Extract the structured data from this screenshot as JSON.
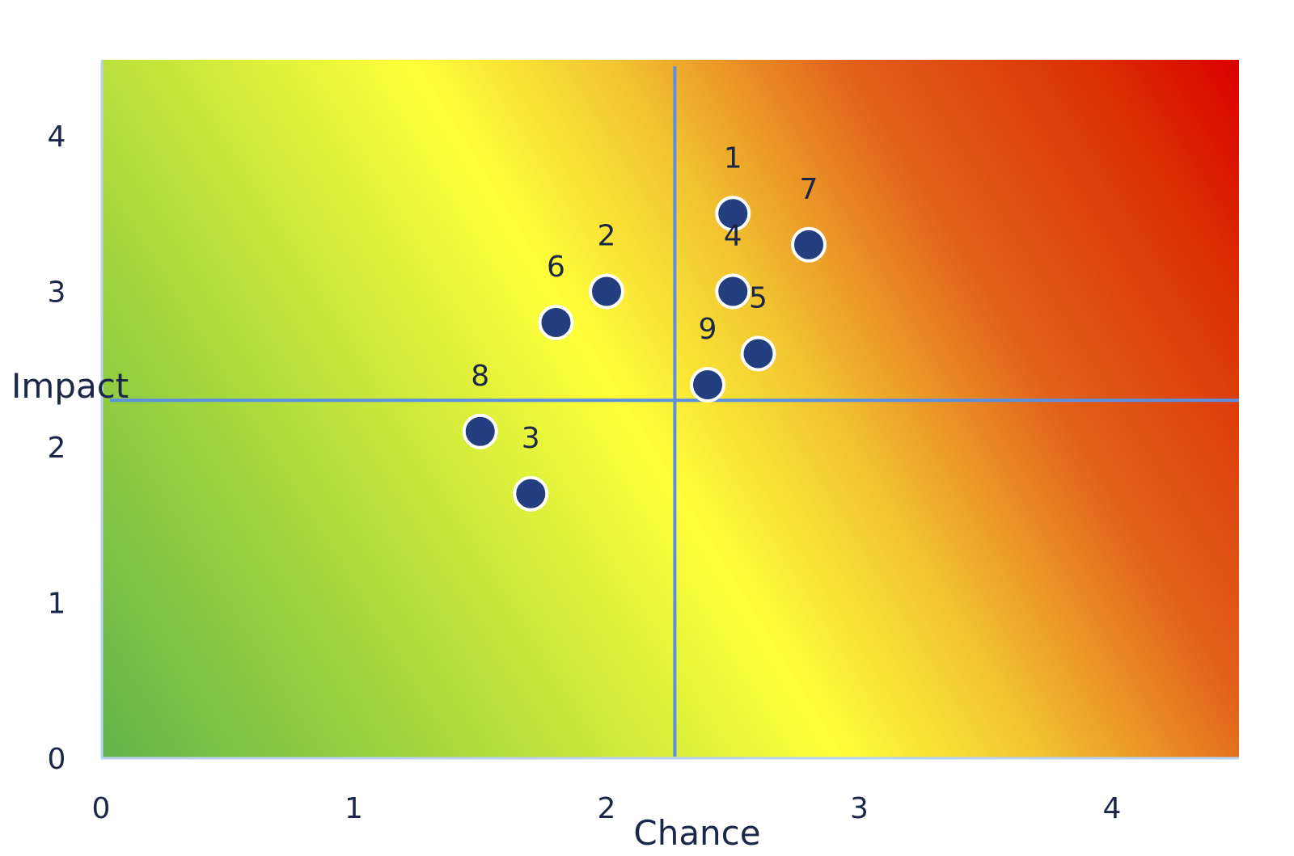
{
  "chart_data": {
    "type": "scatter",
    "title": "",
    "xlabel": "Chance",
    "ylabel": "Impact",
    "xlim": [
      0,
      4.5
    ],
    "ylim": [
      0,
      4.5
    ],
    "x_ticks": [
      "0",
      "1",
      "2",
      "3",
      "4"
    ],
    "y_ticks": [
      "0",
      "1",
      "2",
      "3",
      "4"
    ],
    "grid": false,
    "legend": "none",
    "background": "diagonal gradient from green (low chance, low impact) through yellow to red (high chance, high impact)",
    "quadrant_lines": {
      "x": 2.27,
      "y": 2.3,
      "color": "#5b8fe0"
    },
    "marker_color": "#233f80",
    "marker_outline": "#ffffff",
    "points": [
      {
        "label": "1",
        "x": 2.5,
        "y": 3.5
      },
      {
        "label": "2",
        "x": 2.0,
        "y": 3.0
      },
      {
        "label": "3",
        "x": 1.7,
        "y": 1.7
      },
      {
        "label": "4",
        "x": 2.5,
        "y": 3.0
      },
      {
        "label": "5",
        "x": 2.6,
        "y": 2.6
      },
      {
        "label": "6",
        "x": 1.8,
        "y": 2.8
      },
      {
        "label": "7",
        "x": 2.8,
        "y": 3.3
      },
      {
        "label": "8",
        "x": 1.5,
        "y": 2.1
      },
      {
        "label": "9",
        "x": 2.4,
        "y": 2.4
      }
    ]
  }
}
